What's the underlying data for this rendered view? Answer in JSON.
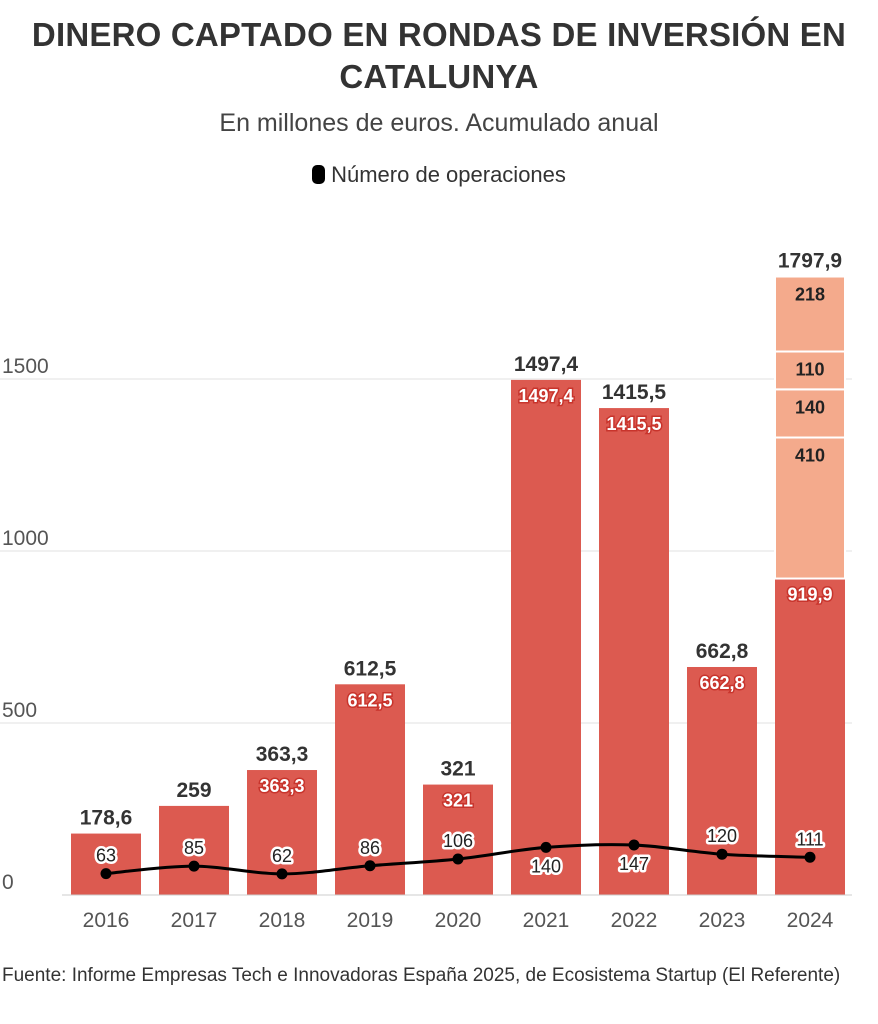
{
  "chart_data": {
    "type": "bar",
    "title": "DINERO CAPTADO EN RONDAS DE INVERSIÓN EN CATALUNYA",
    "subtitle": "En millones de euros. Acumulado anual",
    "legend_label": "Número de operaciones",
    "legend_placement": "top-center",
    "categories": [
      "2016",
      "2017",
      "2018",
      "2019",
      "2020",
      "2021",
      "2022",
      "2023",
      "2024"
    ],
    "totals": [
      "178,6",
      "259",
      "363,3",
      "612,5",
      "321",
      "1497,4",
      "1415,5",
      "662,8",
      "1797,9"
    ],
    "series": [
      {
        "values": [
          178.6,
          259,
          363.3,
          612.5,
          321,
          1497.4,
          1415.5,
          662.8,
          919.9
        ],
        "labels": [
          "",
          "",
          "363,3",
          "612,5",
          "321",
          "1497,4",
          "1415,5",
          "662,8",
          "919,9"
        ],
        "color": "#dc5a50"
      },
      {
        "values": [
          null,
          null,
          null,
          null,
          null,
          null,
          null,
          null,
          410
        ],
        "labels": [
          "",
          "",
          "",
          "",
          "",
          "",
          "",
          "",
          "410"
        ],
        "color": "#f4aa8c"
      },
      {
        "values": [
          null,
          null,
          null,
          null,
          null,
          null,
          null,
          null,
          140
        ],
        "labels": [
          "",
          "",
          "",
          "",
          "",
          "",
          "",
          "",
          "140"
        ],
        "color": "#f4aa8c"
      },
      {
        "values": [
          null,
          null,
          null,
          null,
          null,
          null,
          null,
          null,
          110
        ],
        "labels": [
          "",
          "",
          "",
          "",
          "",
          "",
          "",
          "",
          "110"
        ],
        "color": "#f4aa8c"
      },
      {
        "values": [
          null,
          null,
          null,
          null,
          null,
          null,
          null,
          null,
          218
        ],
        "labels": [
          "",
          "",
          "",
          "",
          "",
          "",
          "",
          "",
          "218"
        ],
        "color": "#f4aa8c"
      }
    ],
    "line_series": {
      "name": "Número de operaciones",
      "values": [
        63,
        85,
        62,
        86,
        106,
        140,
        147,
        120,
        111
      ],
      "color": "#000000"
    },
    "y_ticks": [
      0,
      500,
      1000,
      1500
    ],
    "ylim": [
      0,
      1800
    ],
    "grid": true,
    "source": "Fuente: Informe Empresas Tech e Innovadoras España 2025, de Ecosistema Startup (El Referente)"
  }
}
